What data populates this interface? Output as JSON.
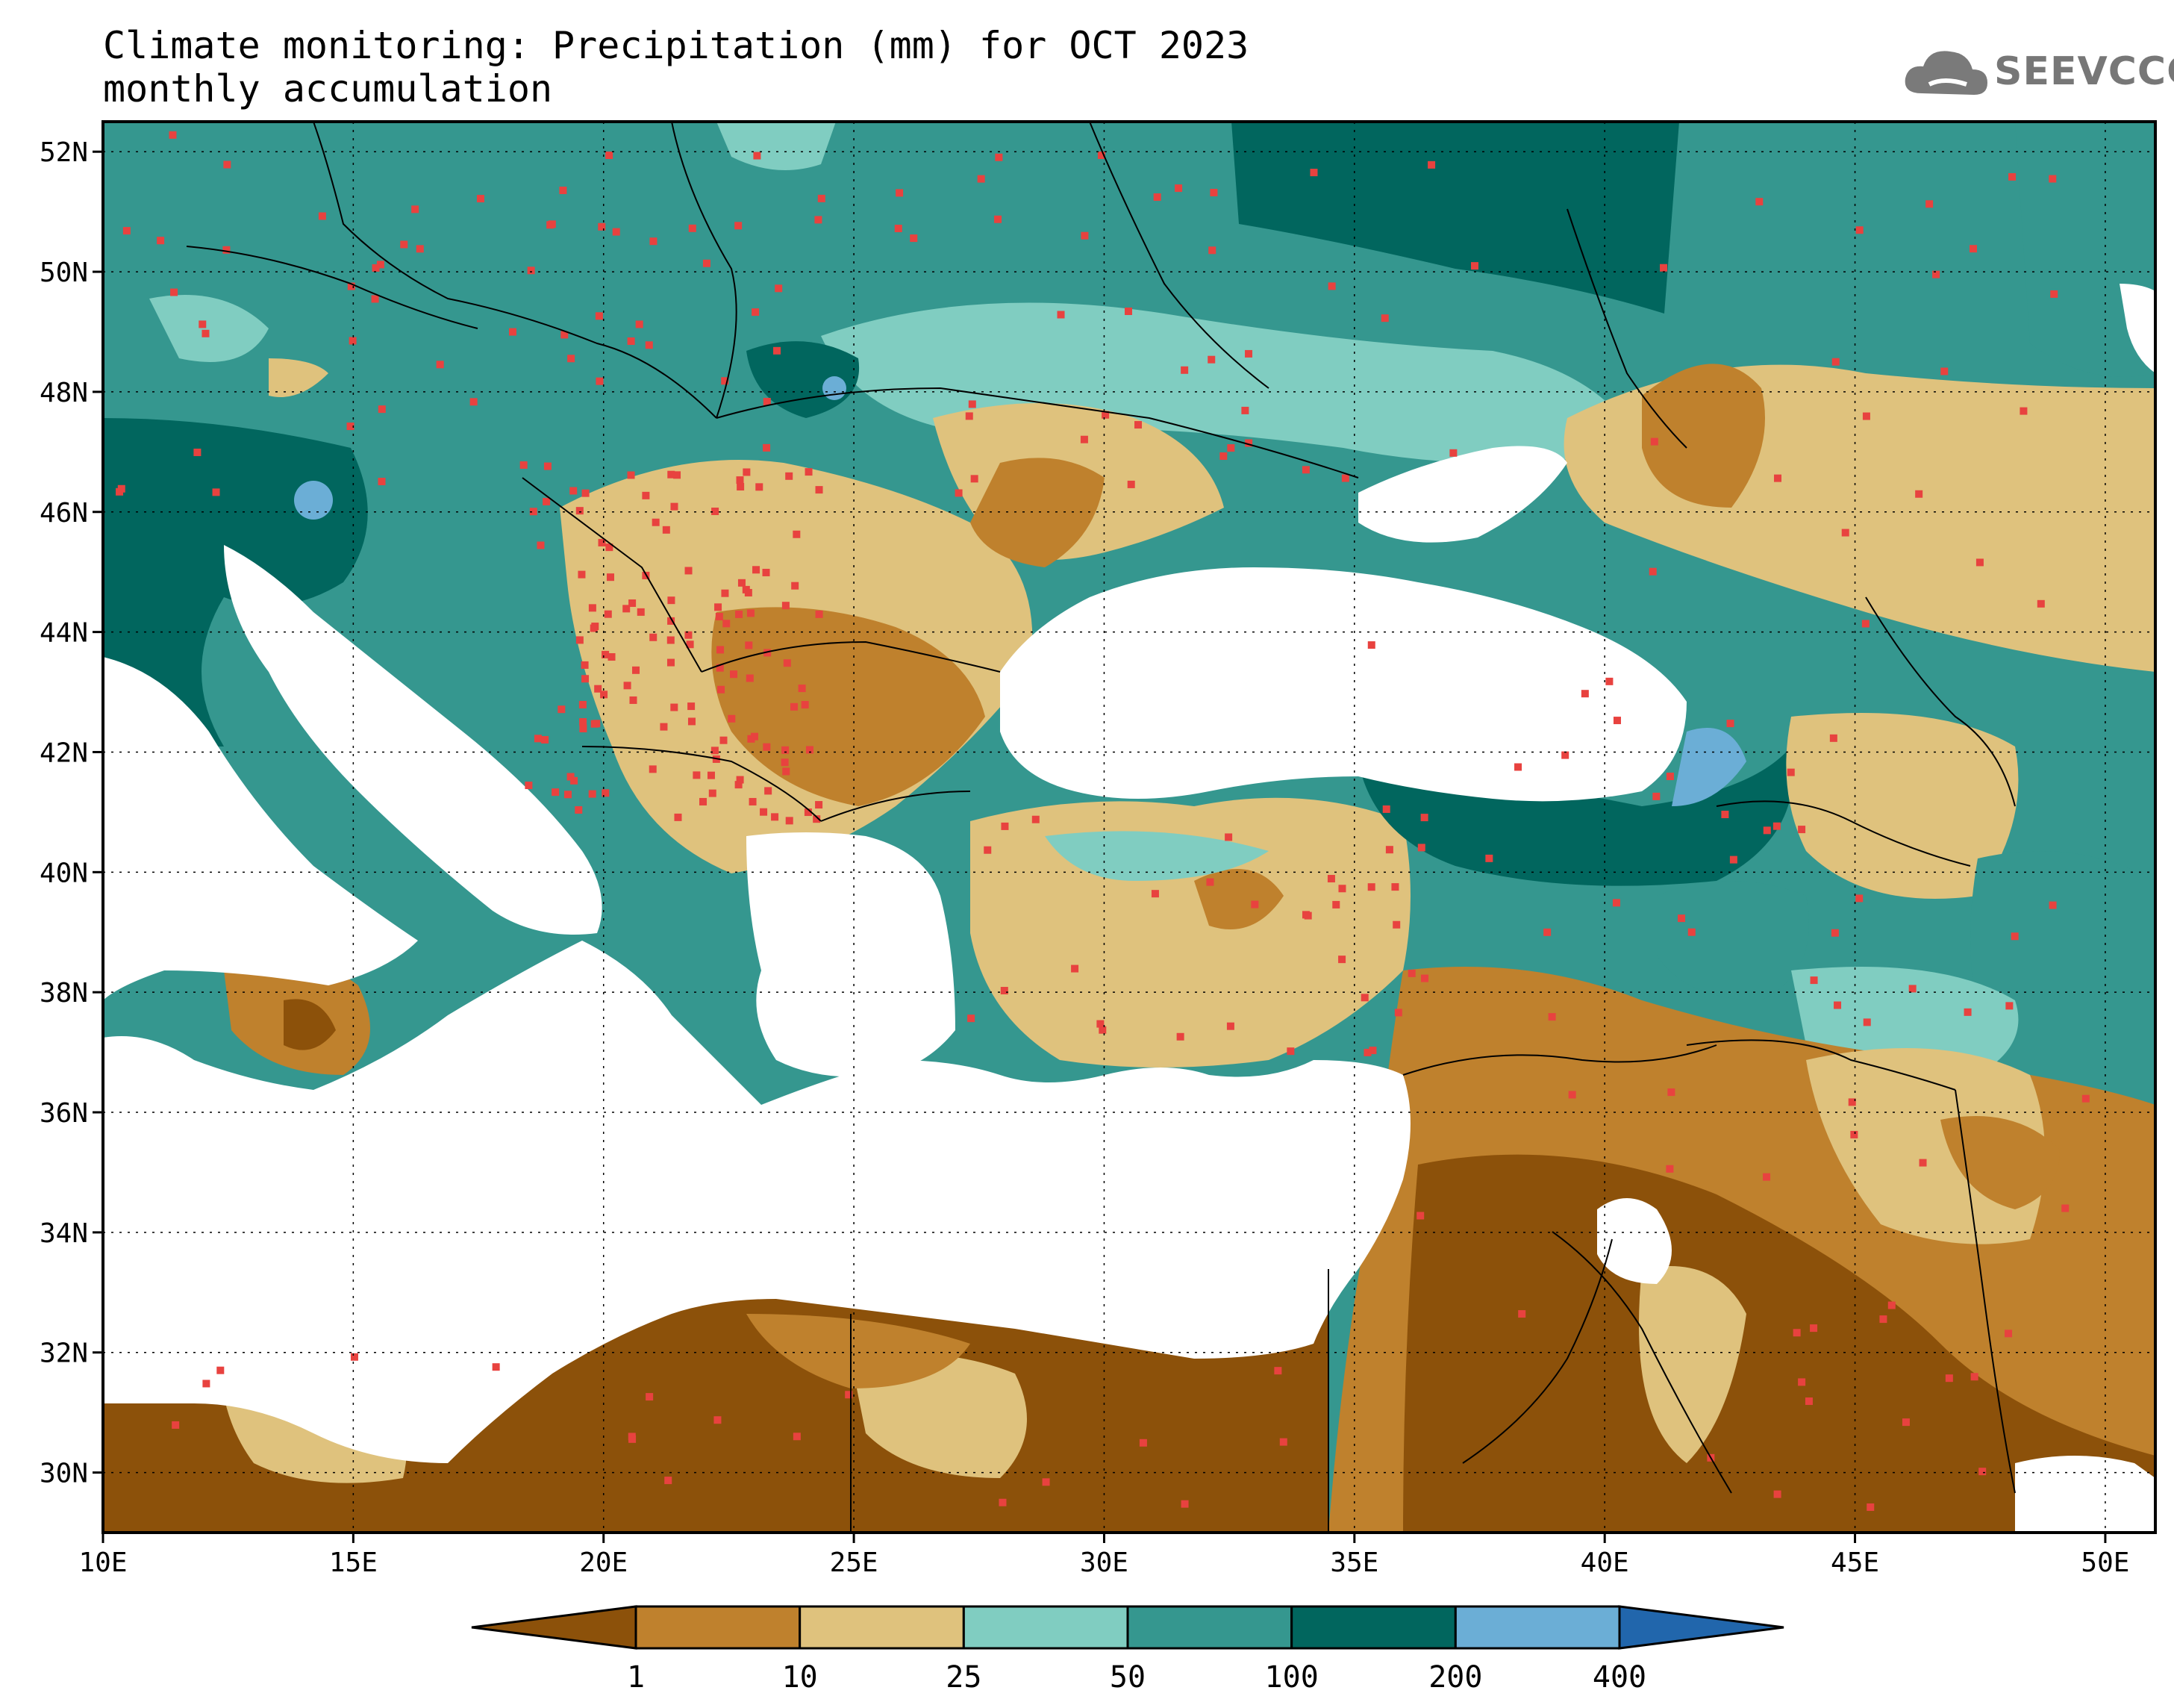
{
  "title": {
    "line1": "Climate monitoring: Precipitation (mm) for OCT 2023",
    "line2": "monthly accumulation"
  },
  "logo": {
    "text": "SEEVCCC",
    "icon": "cloud-icon",
    "color": "#7a7a7a"
  },
  "axes": {
    "lon_ticks": [
      "10E",
      "15E",
      "20E",
      "25E",
      "30E",
      "35E",
      "40E",
      "45E",
      "50E"
    ],
    "lat_ticks": [
      "52N",
      "50N",
      "48N",
      "46N",
      "44N",
      "42N",
      "40N",
      "38N",
      "36N",
      "34N",
      "32N",
      "30N"
    ],
    "lon_range": [
      10,
      51
    ],
    "lat_range": [
      29,
      52.5
    ]
  },
  "colorbar": {
    "labels": [
      "1",
      "10",
      "25",
      "50",
      "100",
      "200",
      "400"
    ],
    "colors": [
      "#8c510a",
      "#bf812d",
      "#dfc27d",
      "#80cdc1",
      "#35978f",
      "#01665e",
      "#6baed6",
      "#2166ac"
    ]
  },
  "stations": {
    "color": "#e8423f",
    "icon": "square-marker-icon"
  }
}
